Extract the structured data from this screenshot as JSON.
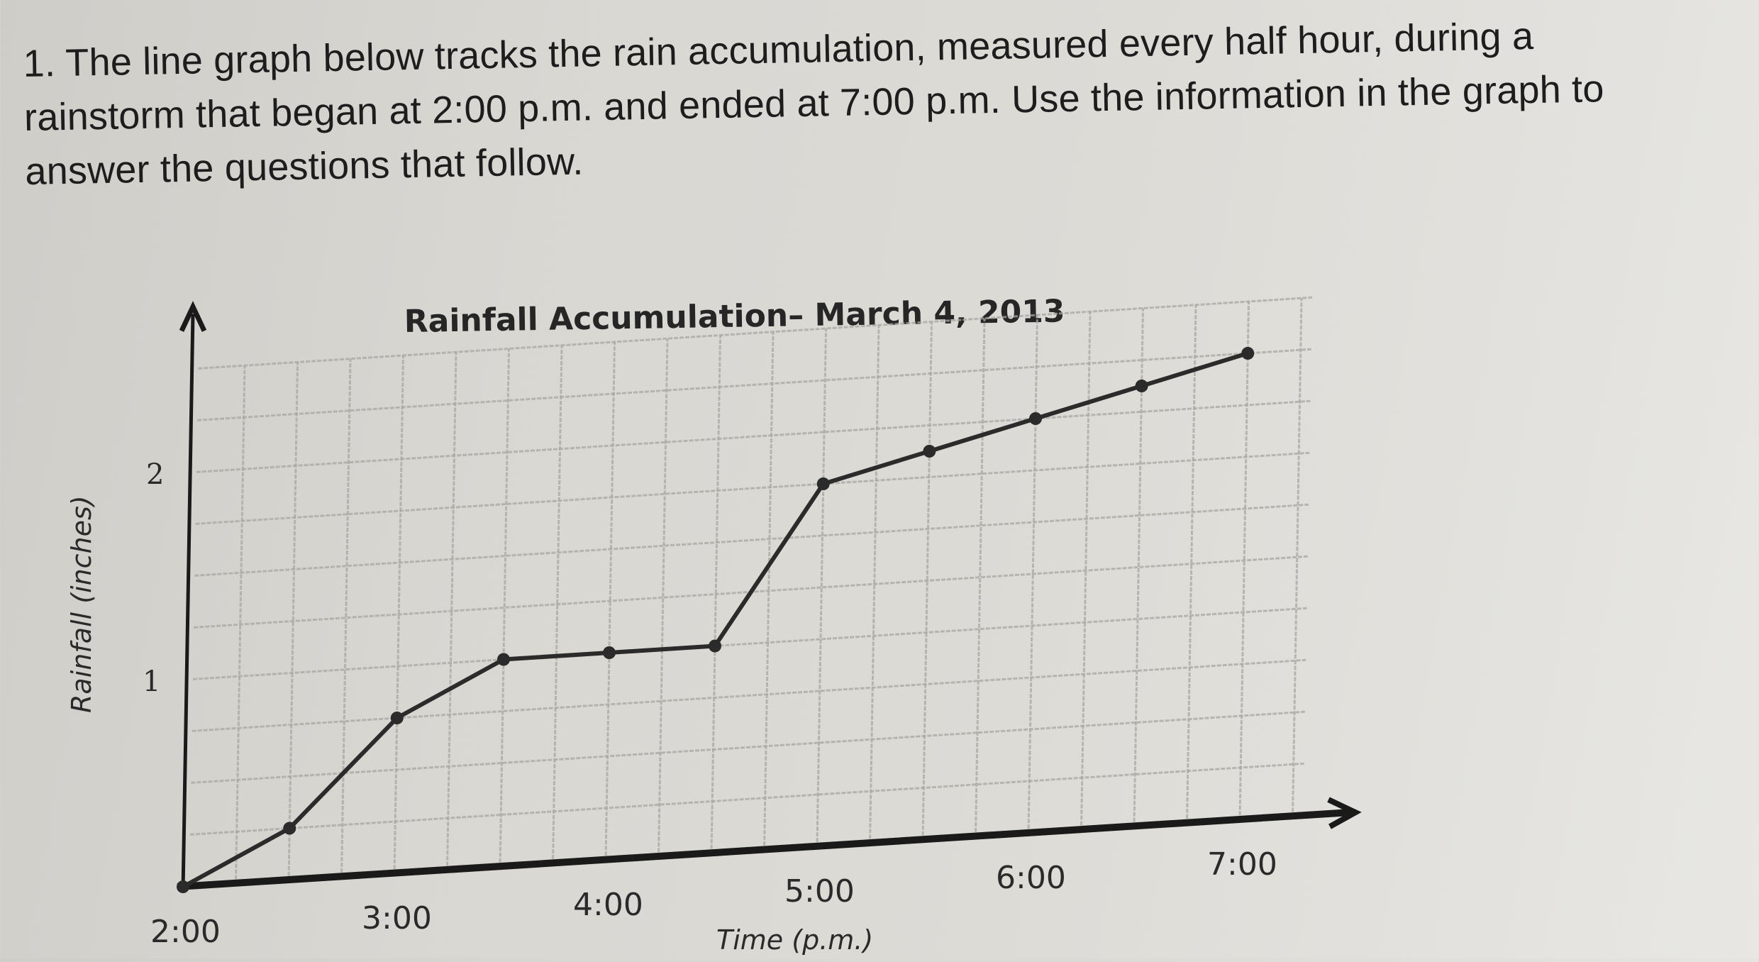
{
  "question": {
    "number": "1.",
    "lines": [
      "1. The line graph below tracks the rain accumulation, measured every half hour, during a",
      "rainstorm that began at 2:00 p.m. and ended at 7:00 p.m. Use the information in the graph to",
      "answer the questions that follow."
    ]
  },
  "chart": {
    "title": "Rainfall Accumulation– March 4, 2013",
    "xlabel": "Time (p.m.)",
    "ylabel": "Rainfall (inches)",
    "y_ticks": [
      "1",
      "2"
    ],
    "x_ticks": [
      "2:00",
      "3:00",
      "4:00",
      "5:00",
      "6:00",
      "7:00"
    ],
    "line_color": "#2b2b2b",
    "grid_color": "#a9a7a2"
  },
  "chart_data": {
    "type": "line",
    "title": "Rainfall Accumulation– March 4, 2013",
    "xlabel": "Time (p.m.)",
    "ylabel": "Rainfall (inches)",
    "x": [
      "2:00",
      "2:30",
      "3:00",
      "3:30",
      "4:00",
      "4:30",
      "5:00",
      "5:30",
      "6:00",
      "6:30",
      "7:00"
    ],
    "series": [
      {
        "name": "Rainfall accumulation",
        "values": [
          0,
          0.25,
          0.75,
          1.0,
          1.0,
          1.0,
          1.75,
          1.875,
          2.0,
          2.125,
          2.25
        ]
      }
    ],
    "x_tick_labels": [
      "2:00",
      "3:00",
      "4:00",
      "5:00",
      "6:00",
      "7:00"
    ],
    "y_tick_labels": [
      "1",
      "2"
    ],
    "ylim": [
      0,
      2.5
    ],
    "grid": true,
    "grid_y_step": 0.25,
    "grid_x_step_minutes": 15,
    "markers": true,
    "legend": "none"
  }
}
